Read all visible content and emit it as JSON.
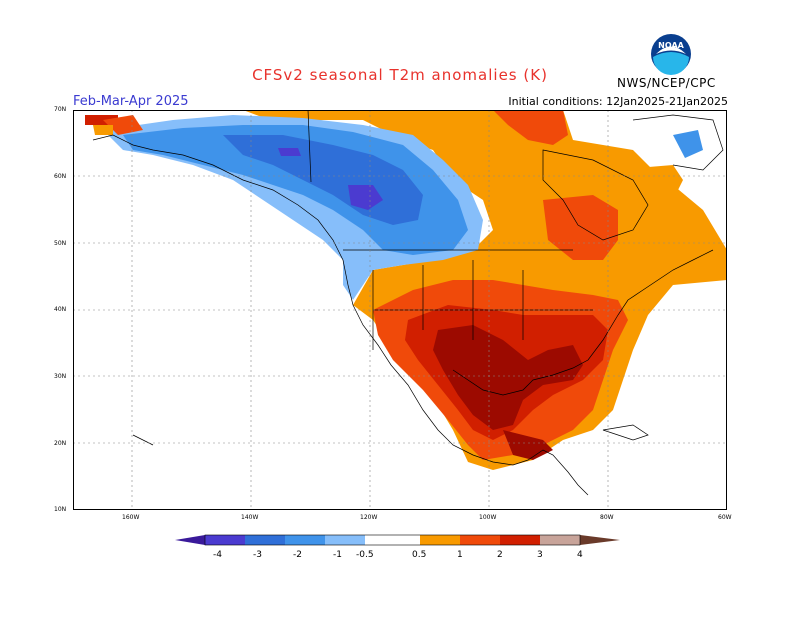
{
  "header": {
    "title": "CFSv2 seasonal T2m anomalies (K)",
    "season": "Feb-Mar-Apr 2025",
    "initial_conditions": "Initial conditions: 12Jan2025-21Jan2025",
    "agency": "NWS/NCEP/CPC"
  },
  "map": {
    "lat_labels": [
      "70N",
      "60N",
      "50N",
      "40N",
      "30N",
      "20N",
      "10N"
    ],
    "lon_labels": [
      "160W",
      "140W",
      "120W",
      "100W",
      "80W",
      "60W"
    ]
  },
  "legend": {
    "labels": [
      "-4",
      "-3",
      "-2",
      "-1",
      "-0.5",
      "0.5",
      "1",
      "2",
      "3",
      "4"
    ],
    "colors": {
      "lt_-4": "#3a1a9a",
      "-4_-3": "#4b3bd0",
      "-3_-2": "#2f6fd8",
      "-2_-1": "#3f93ea",
      "-1_-0.5": "#86befa",
      "neutral": "#ffffff",
      "0.5_1": "#f89a00",
      "1_2": "#f04a0a",
      "2_3": "#d11f00",
      "3_4": "#9c0a00",
      "gt_4": "#c8a49a"
    }
  }
}
